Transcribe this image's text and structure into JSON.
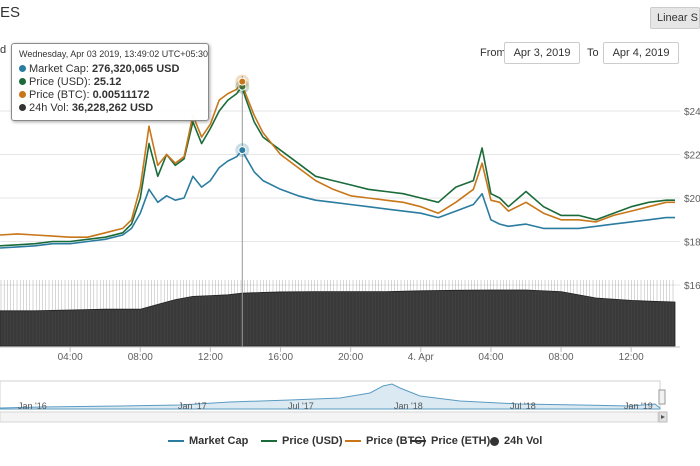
{
  "header": {
    "title_fragment": "ES",
    "scale_button_label": "Linear S",
    "left_clipped_label": "d"
  },
  "range": {
    "from_label": "From",
    "from_value": "Apr 3, 2019",
    "to_label": "To",
    "to_value": "Apr 4, 2019"
  },
  "tooltip": {
    "date": "Wednesday, Apr 03 2019, 13:49:02 UTC+05:30",
    "rows": [
      {
        "label": "Market Cap:",
        "value": "276,320,065 USD",
        "color": "#2b7ca1"
      },
      {
        "label": "Price (USD):",
        "value": "25.12",
        "color": "#1b6b3a"
      },
      {
        "label": "Price (BTC):",
        "value": "0.00511172",
        "color": "#c87619"
      },
      {
        "label": "24h Vol:",
        "value": "36,228,262 USD",
        "color": "#333333"
      }
    ]
  },
  "legend": [
    {
      "label": "Market Cap",
      "color": "#2b7ca1",
      "kind": "line"
    },
    {
      "label": "Price (USD)",
      "color": "#1b6b3a",
      "kind": "line"
    },
    {
      "label": "Price (BTC)",
      "color": "#c87619",
      "kind": "line"
    },
    {
      "label": "Price (ETH)",
      "color": "#333333",
      "kind": "line"
    },
    {
      "label": "24h Vol",
      "color": "#333333",
      "kind": "dot"
    }
  ],
  "chart_data": {
    "type": "line",
    "x_tick_labels": [
      "04:00",
      "08:00",
      "12:00",
      "16:00",
      "20:00",
      "4. Apr",
      "04:00",
      "08:00",
      "12:00"
    ],
    "x_ticks_hours": [
      4,
      8,
      12,
      16,
      20,
      24,
      28,
      32,
      36
    ],
    "y_tick_labels": [
      "$24",
      "$22",
      "$20",
      "$18",
      "$16"
    ],
    "y_ticks": [
      24,
      22,
      20,
      18,
      16
    ],
    "x_range_hours": [
      0,
      38.5
    ],
    "price_range": [
      15.5,
      25.5
    ],
    "hover_hour": 13.82,
    "series": [
      {
        "name": "Price (USD)",
        "color": "#1b6b3a",
        "x": [
          0,
          1,
          2,
          3,
          4,
          5,
          6,
          7,
          7.5,
          8,
          8.5,
          9,
          9.5,
          10,
          10.5,
          11,
          11.5,
          12,
          12.5,
          13,
          13.5,
          13.8,
          14,
          14.5,
          15,
          16,
          17,
          18,
          19,
          20,
          21,
          22,
          23,
          24,
          25,
          26,
          27,
          27.5,
          28,
          28.5,
          29,
          30,
          31,
          32,
          33,
          34,
          35,
          36,
          37,
          38,
          38.5
        ],
        "y": [
          17.8,
          17.85,
          17.9,
          18.0,
          18.0,
          18.1,
          18.2,
          18.4,
          18.8,
          20.0,
          22.5,
          21.0,
          22.0,
          21.5,
          21.8,
          23.5,
          22.5,
          23.2,
          24.0,
          24.5,
          24.8,
          25.12,
          24.6,
          23.5,
          22.8,
          22.2,
          21.6,
          21.0,
          20.8,
          20.6,
          20.4,
          20.3,
          20.2,
          20.0,
          19.8,
          20.5,
          20.8,
          22.3,
          20.2,
          20.0,
          19.6,
          20.3,
          19.6,
          19.2,
          19.2,
          19.0,
          19.3,
          19.6,
          19.8,
          19.9,
          19.9
        ]
      },
      {
        "name": "Price (BTC)",
        "color": "#c87619",
        "x": [
          0,
          1,
          2,
          3,
          4,
          5,
          6,
          7,
          7.5,
          8,
          8.5,
          9,
          9.5,
          10,
          10.5,
          11,
          11.5,
          12,
          12.5,
          13,
          13.5,
          13.8,
          14,
          14.5,
          15,
          16,
          17,
          18,
          19,
          20,
          21,
          22,
          23,
          24,
          25,
          26,
          27,
          27.5,
          28,
          28.5,
          29,
          30,
          31,
          32,
          33,
          34,
          35,
          36,
          37,
          38,
          38.5
        ],
        "y": [
          18.3,
          18.35,
          18.3,
          18.25,
          18.2,
          18.2,
          18.4,
          18.6,
          19.0,
          20.5,
          23.3,
          21.5,
          22.0,
          21.6,
          21.9,
          23.8,
          22.8,
          23.4,
          24.5,
          24.8,
          25.0,
          25.35,
          24.8,
          23.8,
          23.0,
          22.0,
          21.4,
          20.8,
          20.4,
          20.1,
          20.0,
          19.9,
          19.8,
          19.6,
          19.3,
          19.8,
          20.4,
          21.6,
          19.9,
          19.8,
          19.4,
          19.8,
          19.3,
          19.0,
          19.0,
          18.9,
          19.2,
          19.4,
          19.6,
          19.8,
          19.8
        ]
      },
      {
        "name": "Market Cap",
        "color": "#2b7ca1",
        "x": [
          0,
          1,
          2,
          3,
          4,
          5,
          6,
          7,
          7.5,
          8,
          8.5,
          9,
          9.5,
          10,
          10.5,
          11,
          11.5,
          12,
          12.5,
          13,
          13.5,
          13.8,
          14,
          14.5,
          15,
          16,
          17,
          18,
          19,
          20,
          21,
          22,
          23,
          24,
          25,
          26,
          27,
          27.5,
          28,
          28.5,
          29,
          30,
          31,
          32,
          33,
          34,
          35,
          36,
          37,
          38,
          38.5
        ],
        "y": [
          17.7,
          17.75,
          17.8,
          17.9,
          17.9,
          18.0,
          18.1,
          18.3,
          18.6,
          19.3,
          20.4,
          19.8,
          20.1,
          19.9,
          20.0,
          21.0,
          20.5,
          20.8,
          21.4,
          21.7,
          21.9,
          22.2,
          21.9,
          21.2,
          20.8,
          20.4,
          20.1,
          19.9,
          19.8,
          19.7,
          19.6,
          19.5,
          19.4,
          19.3,
          19.1,
          19.4,
          19.7,
          20.2,
          19.0,
          18.8,
          18.7,
          18.8,
          18.6,
          18.6,
          18.6,
          18.7,
          18.8,
          18.9,
          19.0,
          19.1,
          19.1
        ]
      }
    ],
    "volume": {
      "name": "24h Vol",
      "x": [
        0,
        2,
        4,
        6,
        8,
        9,
        10,
        11,
        12,
        13,
        13.8,
        15,
        16,
        18,
        20,
        22,
        24,
        26,
        28,
        30,
        32,
        34,
        36,
        37,
        38.5
      ],
      "y": [
        22,
        22,
        22.5,
        23,
        23,
        26,
        29,
        31,
        31.5,
        32,
        33,
        33.5,
        33.8,
        34,
        34,
        34,
        34.5,
        34.8,
        35,
        35,
        34,
        30,
        28.5,
        28,
        27.5
      ]
    },
    "navigator": {
      "tick_labels": [
        "Jan '16",
        "Jan '17",
        "Jul '17",
        "Jan '18",
        "Jul '18",
        "Jan '19"
      ]
    }
  }
}
